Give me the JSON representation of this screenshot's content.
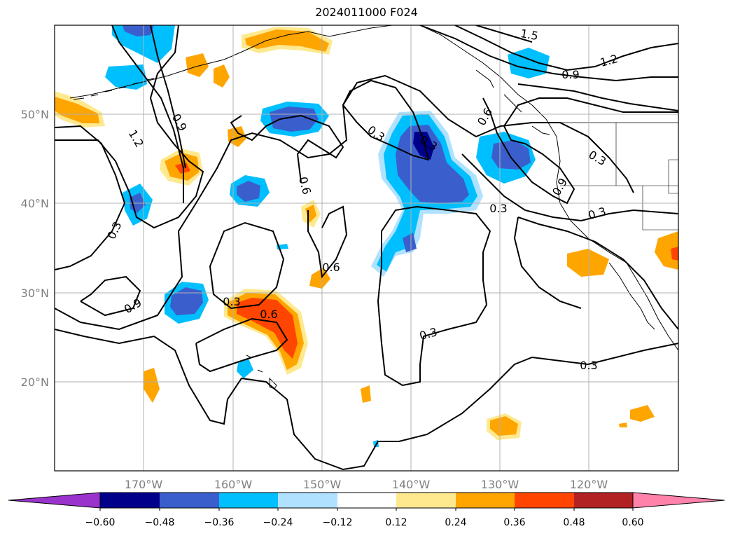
{
  "title": "2024011000 F024",
  "map": {
    "lat_ticks": [
      "20°N",
      "30°N",
      "40°N",
      "50°N"
    ],
    "lon_ticks": [
      "170°W",
      "160°W",
      "150°W",
      "140°W",
      "130°W",
      "120°W"
    ],
    "grid": true,
    "coastline_color": "#000000"
  },
  "contour_labels": [
    {
      "text": "1.5"
    },
    {
      "text": "1.2"
    },
    {
      "text": "0.9"
    },
    {
      "text": "0.6"
    },
    {
      "text": "0.3"
    },
    {
      "text": "0.9"
    },
    {
      "text": "1.2"
    },
    {
      "text": "0.9"
    },
    {
      "text": "0.6"
    },
    {
      "text": "0.3"
    },
    {
      "text": "0.3"
    },
    {
      "text": "0.9"
    },
    {
      "text": "0.3"
    },
    {
      "text": "0.3"
    },
    {
      "text": "0.3"
    },
    {
      "text": "0.6"
    },
    {
      "text": "0.6"
    },
    {
      "text": "0.3"
    },
    {
      "text": "0.3"
    },
    {
      "text": "0.3"
    }
  ],
  "colorbar": {
    "extend": "both",
    "tick_labels": [
      "−0.60",
      "−0.48",
      "−0.36",
      "−0.24",
      "−0.12",
      "0.12",
      "0.24",
      "0.36",
      "0.48",
      "0.60"
    ],
    "colors": [
      "#9933cc",
      "#00008b",
      "#3a5fcd",
      "#00bfff",
      "#b0e2ff",
      "#ffffff",
      "#ffe98f",
      "#ffa500",
      "#ff4500",
      "#b22222",
      "#ff82ab"
    ]
  }
}
